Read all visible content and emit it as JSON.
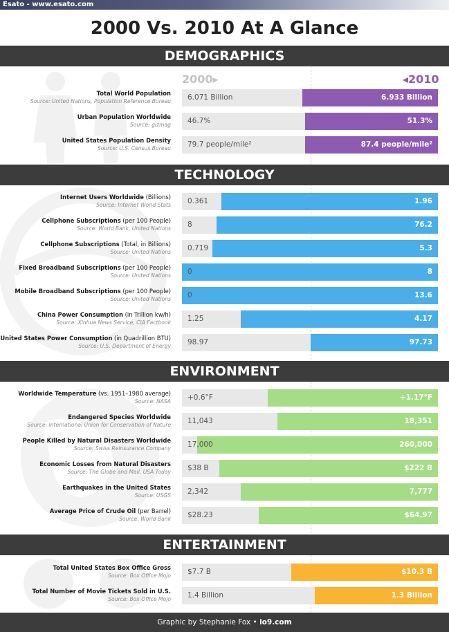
{
  "watermark": "Esato - www.esato.com",
  "title": "2000 Vs. 2010 At A Glance",
  "years": {
    "start": "2000",
    "end": "2010"
  },
  "sections": [
    {
      "name": "DEMOGRAPHICS",
      "color": "#8e5bb2",
      "rows": [
        {
          "title": "Total World Population",
          "unit": "",
          "source": "Source: United Nations, Population Reference Bureau",
          "v2000": "6.071 Billion",
          "v2010": "6.933 Billion",
          "fill": 0.53
        },
        {
          "title": "Urban Population Worldwide",
          "unit": "",
          "source": "Source: gizmag",
          "v2000": "46.7%",
          "v2010": "51.3%",
          "fill": 0.52
        },
        {
          "title": "United States Population Density",
          "unit": "",
          "source": "Source: U.S. Census Bureau",
          "v2000": "79.7 people/mile²",
          "v2010": "87.4 people/mile²",
          "fill": 0.52
        }
      ]
    },
    {
      "name": "TECHNOLOGY",
      "color": "#4aaee8",
      "rows": [
        {
          "title": "Internet Users Worldwide",
          "unit": " (Billions)",
          "source": "Source: Internet World Stats",
          "v2000": "0.361",
          "v2010": "1.96",
          "fill": 0.845
        },
        {
          "title": "Cellphone Subscriptions",
          "unit": " (per 100 People)",
          "source": "Source: World Bank, United Nations",
          "v2000": "8",
          "v2010": "76.2",
          "fill": 0.865
        },
        {
          "title": "Cellphone Subscriptions",
          "unit": " (Total, in Billions)",
          "source": "Source: United Nations",
          "v2000": "0.719",
          "v2010": "5.3",
          "fill": 0.88
        },
        {
          "title": "Fixed Broadband Subscriptions",
          "unit": " (per 100 People)",
          "source": "Source: United Nations",
          "v2000": "0",
          "v2010": "8",
          "fill": 1.0
        },
        {
          "title": "Mobile Broadband Subscriptions",
          "unit": " (per 100 People)",
          "source": "Source: United Nations",
          "v2000": "0",
          "v2010": "13.6",
          "fill": 1.0
        },
        {
          "title": "China Power Consumption",
          "unit": " (in Trillion kw/h)",
          "source": "Source: Xinhua News Service, CIA Factbook",
          "v2000": "1.25",
          "v2010": "4.17",
          "fill": 0.77
        },
        {
          "title": "United States Power Consumption",
          "unit": " (in Quadrillion BTU)",
          "source": "Source: U.S. Department of Energy",
          "v2000": "98.97",
          "v2010": "97.73",
          "fill": 0.497
        }
      ]
    },
    {
      "name": "ENVIRONMENT",
      "color": "#a5dc86",
      "rows": [
        {
          "title": "Worldwide Temperature",
          "unit": " (vs. 1951–1980 average)",
          "source": "Source: NASA",
          "v2000": "+0.6°F",
          "v2010": "+1.17°F",
          "fill": 0.665
        },
        {
          "title": "Endangered Species Worldwide",
          "unit": "",
          "source": "Source: International Union for Conservation of Nature",
          "v2000": "11,043",
          "v2010": "18,351",
          "fill": 0.627
        },
        {
          "title": "People Killed by Natural Disasters Worldwide",
          "unit": "",
          "source": "Source: Swiss Reinsurance Company",
          "v2000": "17,000",
          "v2010": "260,000",
          "fill": 0.94
        },
        {
          "title": "Economic Losses from Natural Disasters",
          "unit": "",
          "source": "Source: The Globe and Mail, USA Today",
          "v2000": "$38 B",
          "v2010": "$222 B",
          "fill": 0.855
        },
        {
          "title": "Earthquakes in the United States",
          "unit": "",
          "source": "Source: USGS",
          "v2000": "2,342",
          "v2010": "7,777",
          "fill": 0.77
        },
        {
          "title": "Average Price of Crude Oil",
          "unit": " (per Barrel)",
          "source": "Source: World Bank",
          "v2000": "$28.23",
          "v2010": "$64.97",
          "fill": 0.7
        }
      ]
    },
    {
      "name": "ENTERTAINMENT",
      "color": "#f9b434",
      "rows": [
        {
          "title": "Total United States Box Office Gross",
          "unit": "",
          "source": "Source: Box Office Mojo",
          "v2000": "$7.7 B",
          "v2010": "$10.3 B",
          "fill": 0.573
        },
        {
          "title": "Total Number of Movie Tickets Sold in U.S.",
          "unit": "",
          "source": "Source: Box Office Mojo",
          "v2000": "1.4 Billion",
          "v2010": "1.3 Billion",
          "fill": 0.482
        }
      ]
    }
  ],
  "footer": {
    "prefix": "Graphic by Stephanie Fox • ",
    "site": "io9.com"
  }
}
